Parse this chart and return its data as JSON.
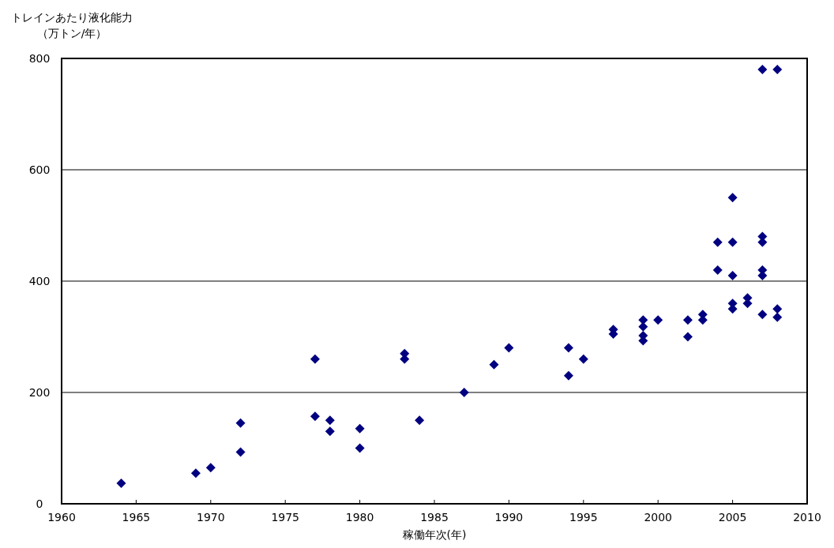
{
  "chart_data": {
    "type": "scatter",
    "xlabel": "稼働年次(年)",
    "ylabel": "トレインあたり液化能力（万トン/年）",
    "xlim": [
      1960,
      2010
    ],
    "xticks": [
      1960,
      1965,
      1970,
      1975,
      1980,
      1985,
      1990,
      1995,
      2000,
      2005,
      2010
    ],
    "ylim": [
      0,
      800
    ],
    "yticks": [
      0,
      200,
      400,
      600,
      800
    ],
    "grid": "y",
    "marker": "diamond",
    "series": [
      {
        "color": "#000080",
        "x": [
          1964,
          1969,
          1970,
          1972,
          1972,
          1977,
          1977,
          1978,
          1978,
          1980,
          1980,
          1983,
          1983,
          1984,
          1987,
          1989,
          1990,
          1994,
          1994,
          1995,
          1997,
          1997,
          1999,
          1999,
          1999,
          1999,
          2000,
          2002,
          2002,
          2003,
          2003,
          2004,
          2004,
          2005,
          2005,
          2005,
          2005,
          2005,
          2006,
          2006,
          2007,
          2007,
          2007,
          2007,
          2007,
          2007,
          2008,
          2008,
          2008
        ],
        "values": [
          37,
          55,
          65,
          93,
          145,
          260,
          157,
          150,
          130,
          135,
          100,
          270,
          260,
          150,
          200,
          250,
          280,
          280,
          230,
          260,
          313,
          305,
          330,
          318,
          302,
          293,
          330,
          330,
          300,
          340,
          330,
          470,
          420,
          550,
          470,
          410,
          360,
          350,
          370,
          360,
          780,
          480,
          470,
          420,
          410,
          340,
          780,
          350,
          335
        ]
      }
    ]
  }
}
